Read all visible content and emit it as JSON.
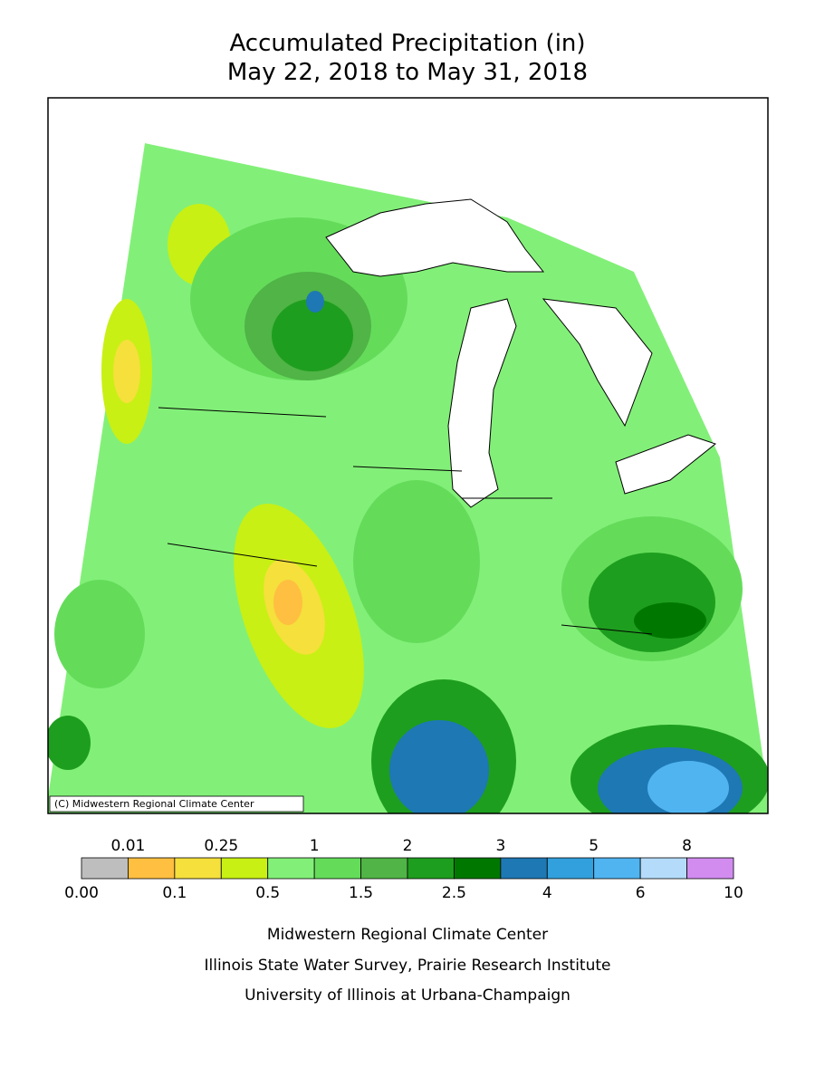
{
  "title": [
    "Accumulated Precipitation (in)",
    "May 22, 2018 to May 31, 2018"
  ],
  "map": {
    "credit": "(C) Midwestern Regional Climate Center"
  },
  "legend": {
    "colors": [
      "#bebebe",
      "#ffbf40",
      "#f5e03c",
      "#c8f014",
      "#82f078",
      "#64dc5a",
      "#50b446",
      "#1e9e1e",
      "#007800",
      "#1e78b4",
      "#32a0dc",
      "#50b4f0",
      "#b4dcfa",
      "#d28cf0"
    ],
    "labels_top": [
      "0.01",
      "0.25",
      "1",
      "2",
      "3",
      "5",
      "8"
    ],
    "labels_bottom": [
      "0.00",
      "0.1",
      "0.5",
      "1.5",
      "2.5",
      "4",
      "6",
      "10"
    ]
  },
  "footer": [
    "Midwestern Regional Climate Center",
    "Illinois State Water Survey, Prairie Research Institute",
    "University of Illinois at Urbana-Champaign"
  ]
}
